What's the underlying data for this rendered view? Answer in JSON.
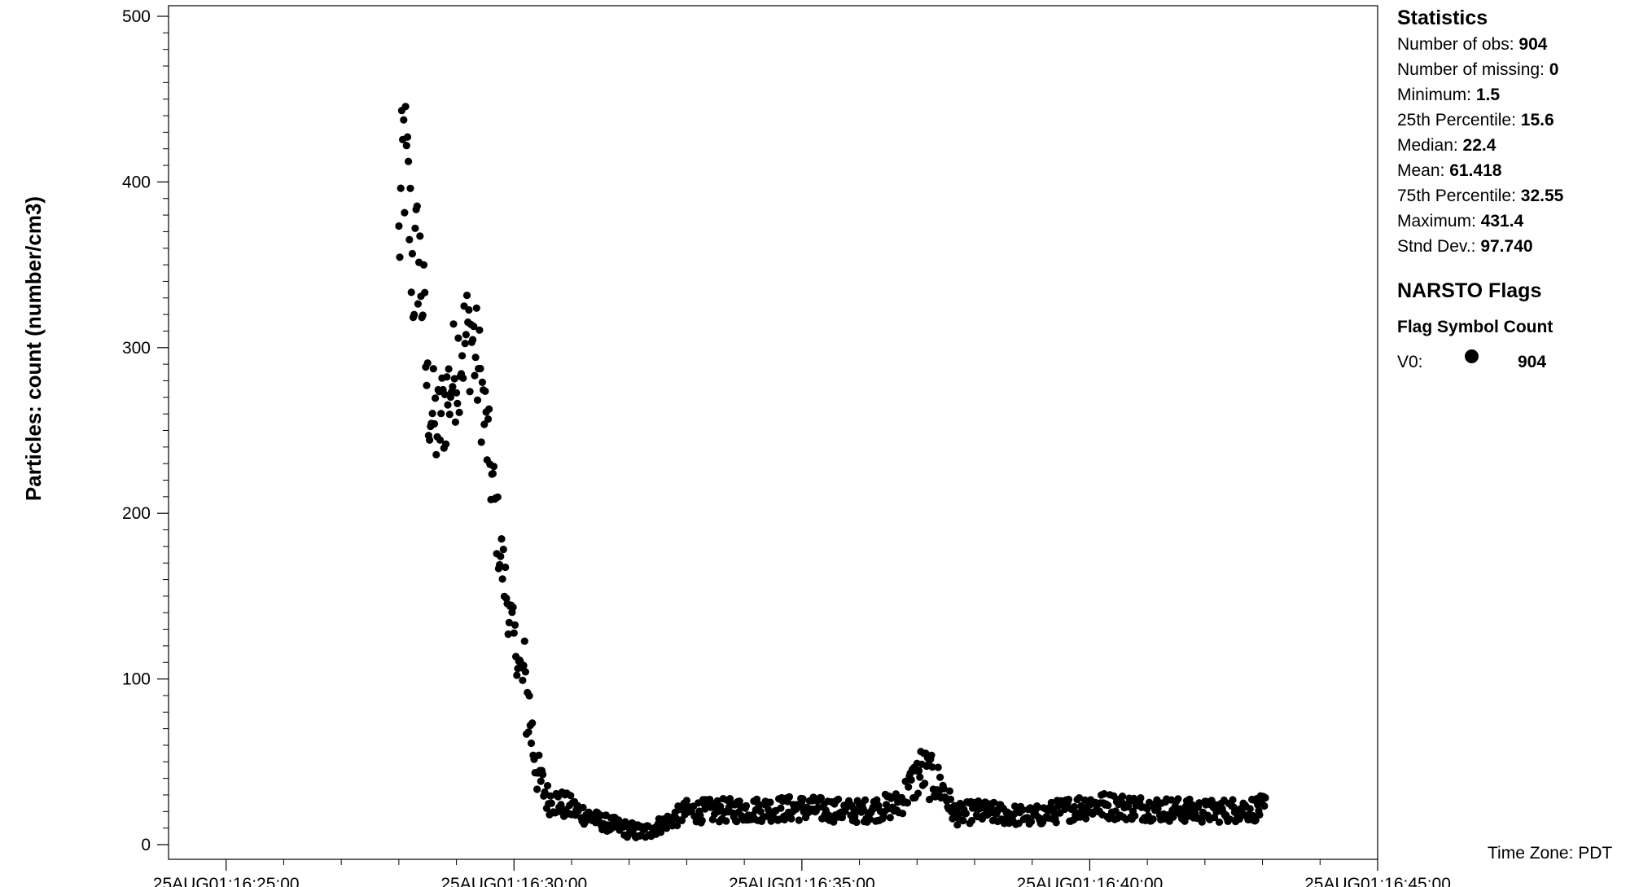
{
  "chart_data": {
    "type": "scatter",
    "ylabel": "Particles: count (number/cm3)",
    "xlabel": "",
    "ylim": [
      0,
      500
    ],
    "y_ticks": [
      "0",
      "100",
      "200",
      "300",
      "400",
      "500"
    ],
    "xlim": [
      "25AUG01:16:24:00",
      "25AUG01:16:45:00"
    ],
    "x_tick_labels": [
      "25AUG01:16:25:00",
      "25AUG01:16:30:00",
      "25AUG01:16:35:00",
      "25AUG01:16:40:00",
      "25AUG01:16:45:00"
    ],
    "marker_color": "#000000",
    "series": [
      {
        "flag": "V0",
        "x_start": "25AUG01:16:28:00",
        "x_end": "25AUG01:16:43:03",
        "interval_seconds": 1,
        "y_profile": [
          [
            "16:28:00",
            360
          ],
          [
            "16:28:05",
            420
          ],
          [
            "16:28:10",
            390
          ],
          [
            "16:28:15",
            340
          ],
          [
            "16:28:20",
            360
          ],
          [
            "16:28:25",
            330
          ],
          [
            "16:28:30",
            270
          ],
          [
            "16:28:40",
            250
          ],
          [
            "16:28:50",
            270
          ],
          [
            "16:29:05",
            300
          ],
          [
            "16:29:15",
            310
          ],
          [
            "16:29:25",
            280
          ],
          [
            "16:29:35",
            230
          ],
          [
            "16:29:45",
            180
          ],
          [
            "16:29:55",
            140
          ],
          [
            "16:30:05",
            110
          ],
          [
            "16:30:15",
            85
          ],
          [
            "16:30:20",
            60
          ],
          [
            "16:30:25",
            42
          ],
          [
            "16:30:35",
            28
          ],
          [
            "16:31:00",
            22
          ],
          [
            "16:31:30",
            14
          ],
          [
            "16:32:00",
            9
          ],
          [
            "16:32:15",
            7
          ],
          [
            "16:32:40",
            14
          ],
          [
            "16:33:00",
            20
          ],
          [
            "16:34:00",
            21
          ],
          [
            "16:35:00",
            22
          ],
          [
            "16:36:00",
            20
          ],
          [
            "16:36:40",
            24
          ],
          [
            "16:37:05",
            45
          ],
          [
            "16:37:25",
            35
          ],
          [
            "16:37:40",
            18
          ],
          [
            "16:38:00",
            20
          ],
          [
            "16:39:00",
            17
          ],
          [
            "16:40:00",
            24
          ],
          [
            "16:41:00",
            22
          ],
          [
            "16:42:00",
            20
          ],
          [
            "16:43:03",
            22
          ]
        ]
      }
    ]
  },
  "statistics": {
    "title": "Statistics",
    "items": [
      {
        "label": "Number of obs:",
        "value": "904"
      },
      {
        "label": "Number of missing:",
        "value": "0"
      },
      {
        "label": "Minimum:",
        "value": "1.5"
      },
      {
        "label": "25th Percentile:",
        "value": "15.6"
      },
      {
        "label": "Median:",
        "value": "22.4"
      },
      {
        "label": "Mean:",
        "value": "61.418"
      },
      {
        "label": "75th Percentile:",
        "value": "32.55"
      },
      {
        "label": "Maximum:",
        "value": "431.4"
      },
      {
        "label": "Stnd Dev.:",
        "value": "97.740"
      }
    ]
  },
  "flags": {
    "title": "NARSTO Flags",
    "header": "Flag Symbol Count",
    "rows": [
      {
        "flag": "V0:",
        "count": "904"
      }
    ]
  },
  "timezone": "Time Zone: PDT"
}
